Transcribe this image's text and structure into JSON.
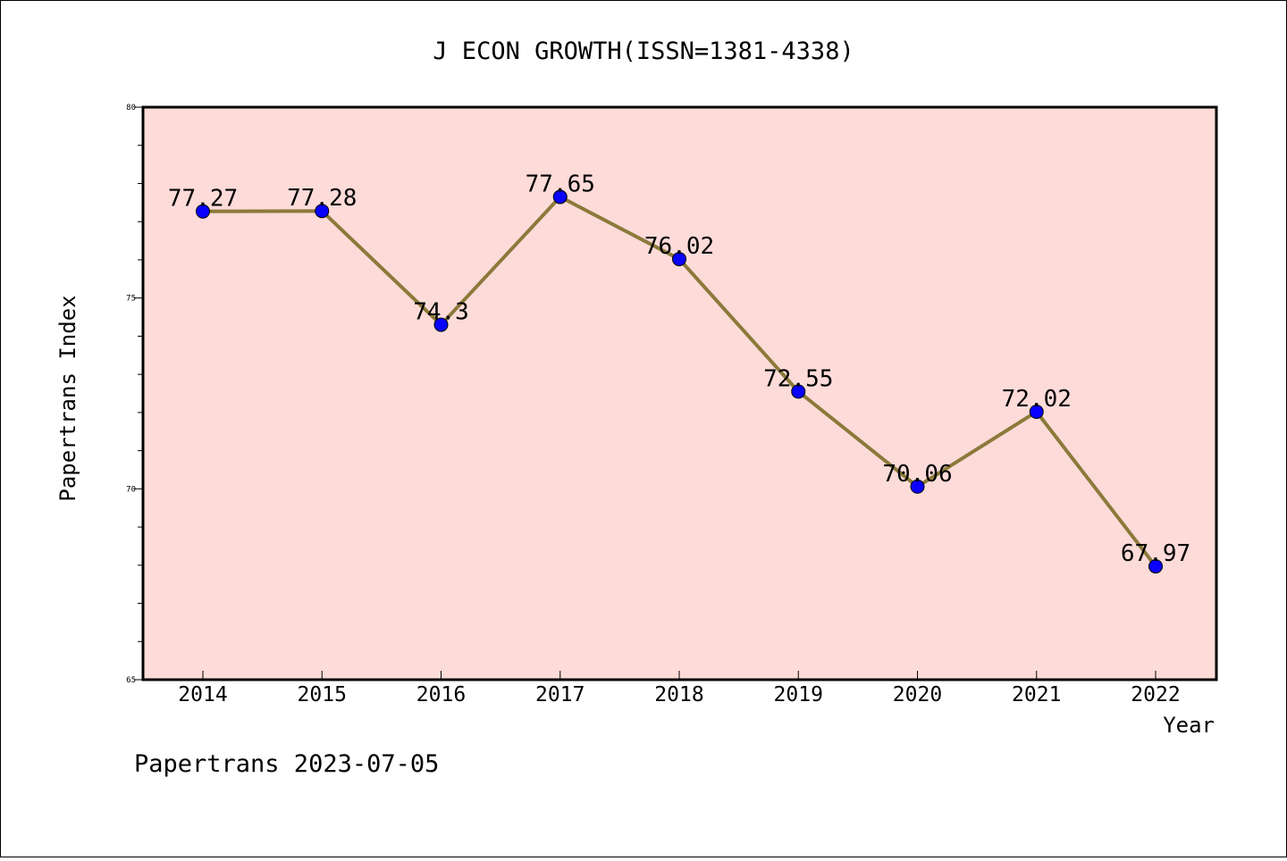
{
  "chart_data": {
    "type": "line",
    "title": "J ECON GROWTH(ISSN=1381-4338)",
    "xlabel": "Year",
    "ylabel": "Papertrans Index",
    "categories": [
      "2014",
      "2015",
      "2016",
      "2017",
      "2018",
      "2019",
      "2020",
      "2021",
      "2022"
    ],
    "series": [
      {
        "values": [
          77.27,
          77.28,
          74.3,
          77.65,
          76.02,
          72.55,
          70.06,
          72.02,
          67.97
        ],
        "data_labels": [
          "77.27",
          "77.28",
          "74.3",
          "77.65",
          "76.02",
          "72.55",
          "70.06",
          "72.02",
          "67.97"
        ]
      }
    ],
    "ylim": [
      65,
      80
    ],
    "yticks": [
      65,
      70,
      75,
      80
    ],
    "y_minor_step": 1,
    "grid": false,
    "plot_background": "#fddbd9",
    "line_color": "#8b7a3a",
    "marker_color": "#0a00ff"
  },
  "footer": {
    "text": "Papertrans 2023-07-05"
  }
}
